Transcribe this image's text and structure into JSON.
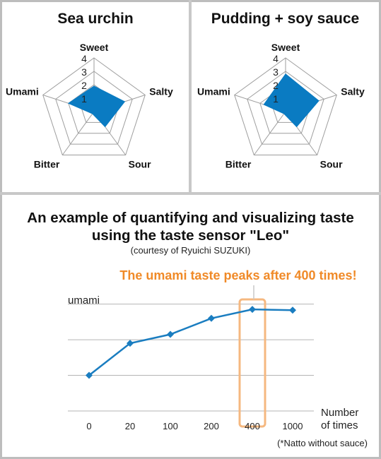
{
  "radar_panels": [
    {
      "title": "Sea urchin",
      "axes": [
        "Sweet",
        "Salty",
        "Sour",
        "Bitter",
        "Umami"
      ],
      "ticks": [
        "1",
        "2",
        "3",
        "4"
      ]
    },
    {
      "title": "Pudding + soy sauce",
      "axes": [
        "Sweet",
        "Salty",
        "Sour",
        "Bitter",
        "Umami"
      ],
      "ticks": [
        "1",
        "2",
        "3",
        "4"
      ]
    }
  ],
  "line_panel": {
    "title_line1": "An example of quantifying and visualizing taste",
    "title_line2": "using the taste sensor \"Leo\"",
    "credit": "(courtesy of Ryuichi SUZUKI)",
    "callout": "The umami taste peaks after 400 times!",
    "y_label": "umami",
    "x_label_line1": "Number",
    "x_label_line2": "of times",
    "footnote": "(*Natto without sauce)"
  },
  "colors": {
    "fill": "#0a7bc2",
    "line": "#1a7dc0",
    "highlight": "#f5b880",
    "callout_text": "#f08a28",
    "grid": "#9e9e9e"
  },
  "chart_data": [
    {
      "type": "radar",
      "title": "Sea urchin",
      "categories": [
        "Sweet",
        "Salty",
        "Sour",
        "Bitter",
        "Umami"
      ],
      "values": [
        1.9,
        2.4,
        1.4,
        0.2,
        2.0
      ],
      "range": [
        0,
        4
      ]
    },
    {
      "type": "radar",
      "title": "Pudding + soy sauce",
      "categories": [
        "Sweet",
        "Salty",
        "Sour",
        "Bitter",
        "Umami"
      ],
      "values": [
        2.8,
        2.6,
        1.4,
        0.2,
        1.7
      ],
      "range": [
        0,
        4
      ]
    },
    {
      "type": "line",
      "title": "An example of quantifying and visualizing taste using the taste sensor \"Leo\"",
      "xlabel": "Number of times",
      "ylabel": "umami",
      "categories": [
        "0",
        "20",
        "100",
        "200",
        "400",
        "1000"
      ],
      "values": [
        1.0,
        1.9,
        2.15,
        2.6,
        2.85,
        2.83
      ],
      "ylim": [
        0,
        3.25
      ],
      "grid": true,
      "highlight_category": "400"
    }
  ]
}
